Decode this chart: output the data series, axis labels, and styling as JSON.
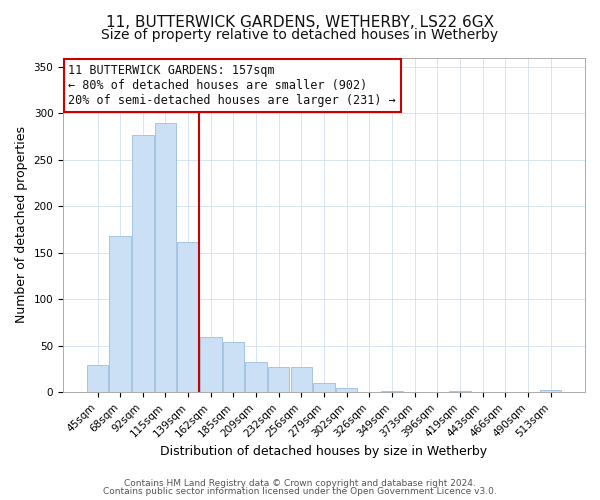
{
  "title1": "11, BUTTERWICK GARDENS, WETHERBY, LS22 6GX",
  "title2": "Size of property relative to detached houses in Wetherby",
  "xlabel": "Distribution of detached houses by size in Wetherby",
  "ylabel": "Number of detached properties",
  "bar_labels": [
    "45sqm",
    "68sqm",
    "92sqm",
    "115sqm",
    "139sqm",
    "162sqm",
    "185sqm",
    "209sqm",
    "232sqm",
    "256sqm",
    "279sqm",
    "302sqm",
    "326sqm",
    "349sqm",
    "373sqm",
    "396sqm",
    "419sqm",
    "443sqm",
    "466sqm",
    "490sqm",
    "513sqm"
  ],
  "bar_values": [
    29,
    168,
    277,
    290,
    162,
    60,
    54,
    33,
    27,
    27,
    10,
    5,
    0,
    1,
    0,
    0,
    1,
    0,
    0,
    0,
    3
  ],
  "bar_color": "#cce0f5",
  "bar_edge_color": "#99bedd",
  "vline_color": "#cc0000",
  "vline_pos": 4.5,
  "annotation_text": "11 BUTTERWICK GARDENS: 157sqm\n← 80% of detached houses are smaller (902)\n20% of semi-detached houses are larger (231) →",
  "annotation_box_facecolor": "#ffffff",
  "annotation_box_edgecolor": "#cc0000",
  "ylim": [
    0,
    360
  ],
  "yticks": [
    0,
    50,
    100,
    150,
    200,
    250,
    300,
    350
  ],
  "footer1": "Contains HM Land Registry data © Crown copyright and database right 2024.",
  "footer2": "Contains public sector information licensed under the Open Government Licence v3.0.",
  "title_fontsize": 11,
  "subtitle_fontsize": 10,
  "axis_label_fontsize": 9,
  "tick_fontsize": 7.5,
  "annotation_fontsize": 8.5,
  "footer_fontsize": 6.5
}
